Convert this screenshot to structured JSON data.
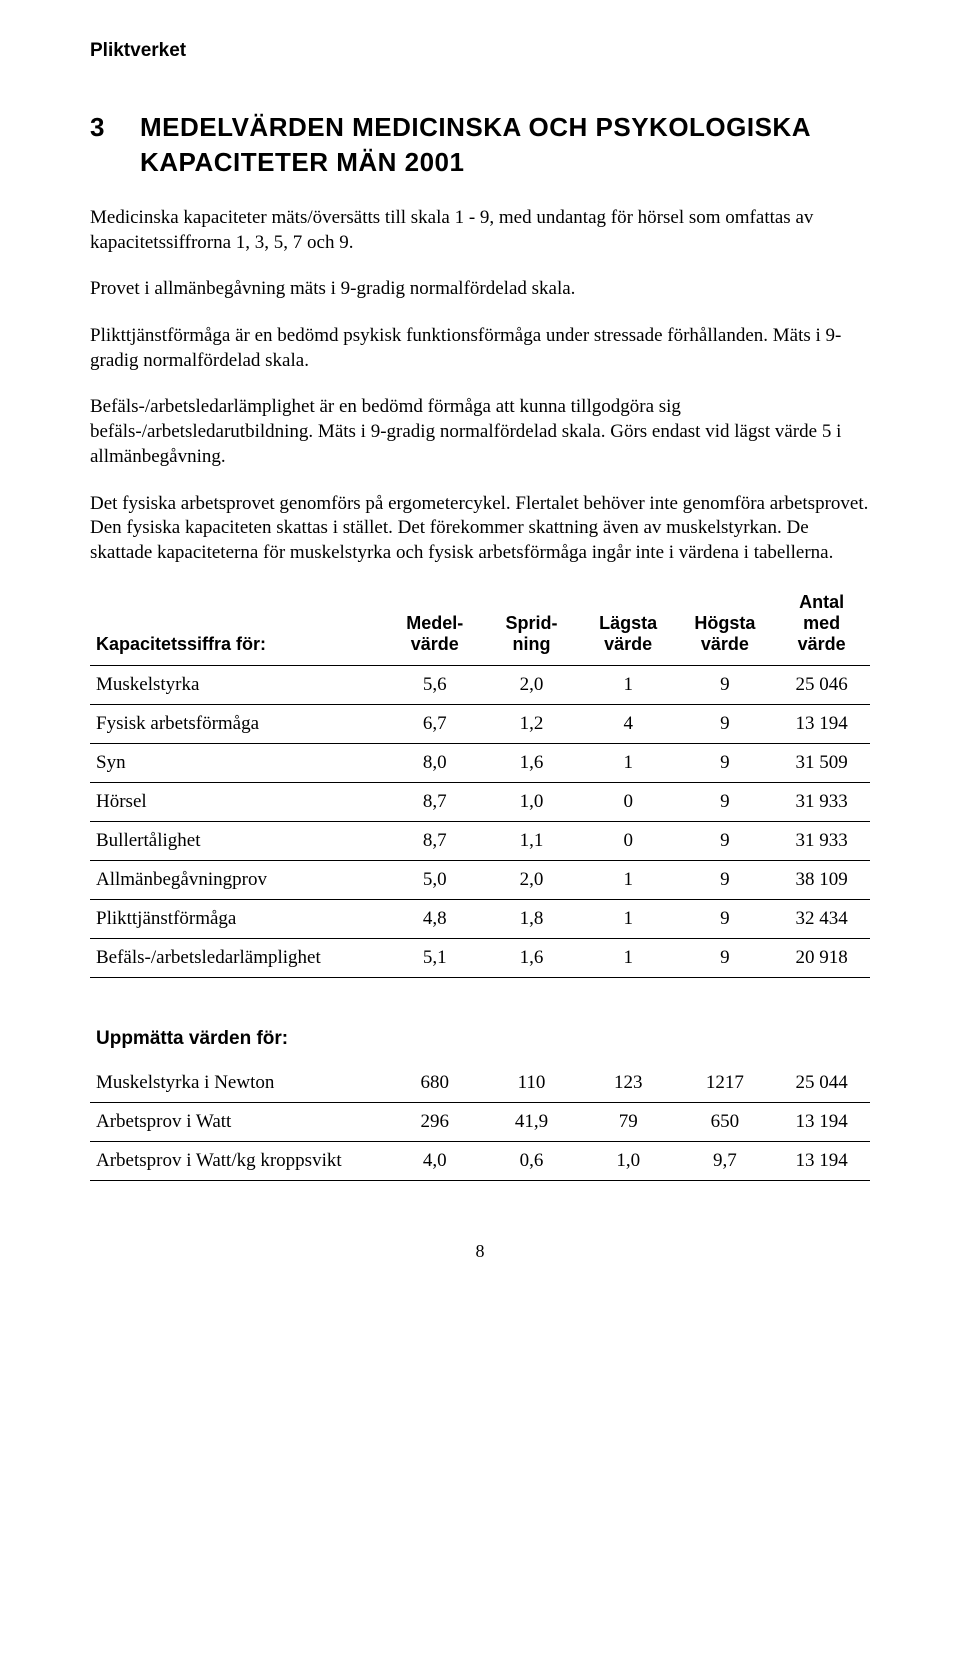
{
  "header": "Pliktverket",
  "section_number": "3",
  "title_line1": "MEDELVÄRDEN MEDICINSKA OCH PSYKOLOGISKA",
  "title_line2": "KAPACITETER MÄN 2001",
  "paragraphs": {
    "p1": "Medicinska kapaciteter mäts/översätts till skala 1 - 9, med undantag för hörsel som omfattas av kapacitetssiffrorna 1, 3, 5, 7 och 9.",
    "p2": "Provet i allmänbegåvning mäts i 9-gradig normalfördelad skala.",
    "p3": "Plikttjänstförmåga är en bedömd psykisk funktionsförmåga under stressade förhållanden. Mäts i 9-gradig normalfördelad skala.",
    "p4": "Befäls-/arbetsledarlämplighet är en bedömd förmåga att kunna tillgodgöra sig befäls-/arbetsledarutbildning. Mäts i 9-gradig normalfördelad skala. Görs endast vid lägst värde 5 i allmänbegåvning.",
    "p5": "Det fysiska arbetsprovet genomförs på ergometercykel. Flertalet behöver inte genomföra arbetsprovet. Den fysiska kapaciteten skattas i stället. Det förekommer skattning även av muskelstyrkan. De skattade kapaciteterna för muskelstyrka och fysisk arbetsförmåga ingår inte i värdena i tabellerna."
  },
  "table": {
    "columns": {
      "c0": "Kapacitetssiffra för:",
      "c1a": "Medel-",
      "c1b": "värde",
      "c2a": "Sprid-",
      "c2b": "ning",
      "c3a": "Lägsta",
      "c3b": "värde",
      "c4a": "Högsta",
      "c4b": "värde",
      "c5a": "Antal",
      "c5b": "med värde"
    },
    "rows": [
      {
        "label": "Muskelstyrka",
        "v1": "5,6",
        "v2": "2,0",
        "v3": "1",
        "v4": "9",
        "v5": "25 046"
      },
      {
        "label": "Fysisk arbetsförmåga",
        "v1": "6,7",
        "v2": "1,2",
        "v3": "4",
        "v4": "9",
        "v5": "13 194"
      },
      {
        "label": "Syn",
        "v1": "8,0",
        "v2": "1,6",
        "v3": "1",
        "v4": "9",
        "v5": "31 509"
      },
      {
        "label": "Hörsel",
        "v1": "8,7",
        "v2": "1,0",
        "v3": "0",
        "v4": "9",
        "v5": "31 933"
      },
      {
        "label": "Bullertålighet",
        "v1": "8,7",
        "v2": "1,1",
        "v3": "0",
        "v4": "9",
        "v5": "31 933"
      },
      {
        "label": "Allmänbegåvningprov",
        "v1": "5,0",
        "v2": "2,0",
        "v3": "1",
        "v4": "9",
        "v5": "38 109"
      },
      {
        "label": "Plikttjänstförmåga",
        "v1": "4,8",
        "v2": "1,8",
        "v3": "1",
        "v4": "9",
        "v5": "32 434"
      },
      {
        "label": "Befäls-/arbetsledarlämplighet",
        "v1": "5,1",
        "v2": "1,6",
        "v3": "1",
        "v4": "9",
        "v5": "20 918"
      }
    ],
    "subheader": "Uppmätta värden för:",
    "rows2": [
      {
        "label": "Muskelstyrka i Newton",
        "v1": "680",
        "v2": "110",
        "v3": "123",
        "v4": "1217",
        "v5": "25 044"
      },
      {
        "label": "Arbetsprov i Watt",
        "v1": "296",
        "v2": "41,9",
        "v3": "79",
        "v4": "650",
        "v5": "13 194"
      },
      {
        "label": "Arbetsprov i Watt/kg kroppsvikt",
        "v1": "4,0",
        "v2": "0,6",
        "v3": "1,0",
        "v4": "9,7",
        "v5": "13 194"
      }
    ]
  },
  "page_number": "8"
}
